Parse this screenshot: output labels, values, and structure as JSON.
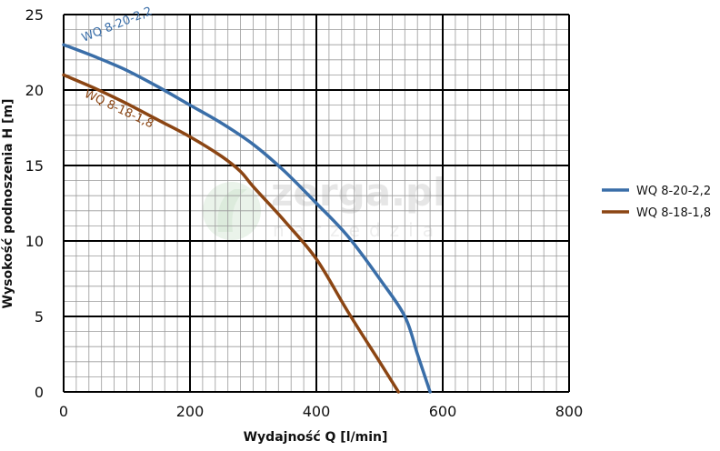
{
  "chart_data": {
    "type": "line",
    "xlabel": "Wydajność Q [l/min]",
    "ylabel": "Wysokość podnoszenia H [m]",
    "xlim": [
      0,
      800
    ],
    "ylim": [
      0,
      25
    ],
    "xticks": [
      "0",
      "200",
      "400",
      "600",
      "800"
    ],
    "yticks": [
      "0",
      "5",
      "10",
      "15",
      "20",
      "25"
    ],
    "grid": true,
    "legend_position": "right",
    "series": [
      {
        "name": "WQ 8-20-2,2",
        "color": "#3a6ea8",
        "x": [
          0,
          50,
          100,
          150,
          200,
          250,
          300,
          350,
          400,
          450,
          500,
          540,
          560,
          580
        ],
        "y": [
          23,
          22.2,
          21.3,
          20.2,
          19,
          17.8,
          16.4,
          14.6,
          12.5,
          10.3,
          7.5,
          5,
          2.5,
          0
        ]
      },
      {
        "name": "WQ 8-18-1,8",
        "color": "#8b4513",
        "x": [
          0,
          50,
          100,
          150,
          200,
          250,
          280,
          300,
          350,
          400,
          450,
          500,
          530
        ],
        "y": [
          21,
          20.1,
          19.1,
          18,
          16.9,
          15.6,
          14.6,
          13.6,
          11.3,
          8.8,
          5.3,
          2,
          0
        ]
      }
    ]
  },
  "watermark": {
    "main": "zerga.pl",
    "sub": "narzedzia"
  }
}
